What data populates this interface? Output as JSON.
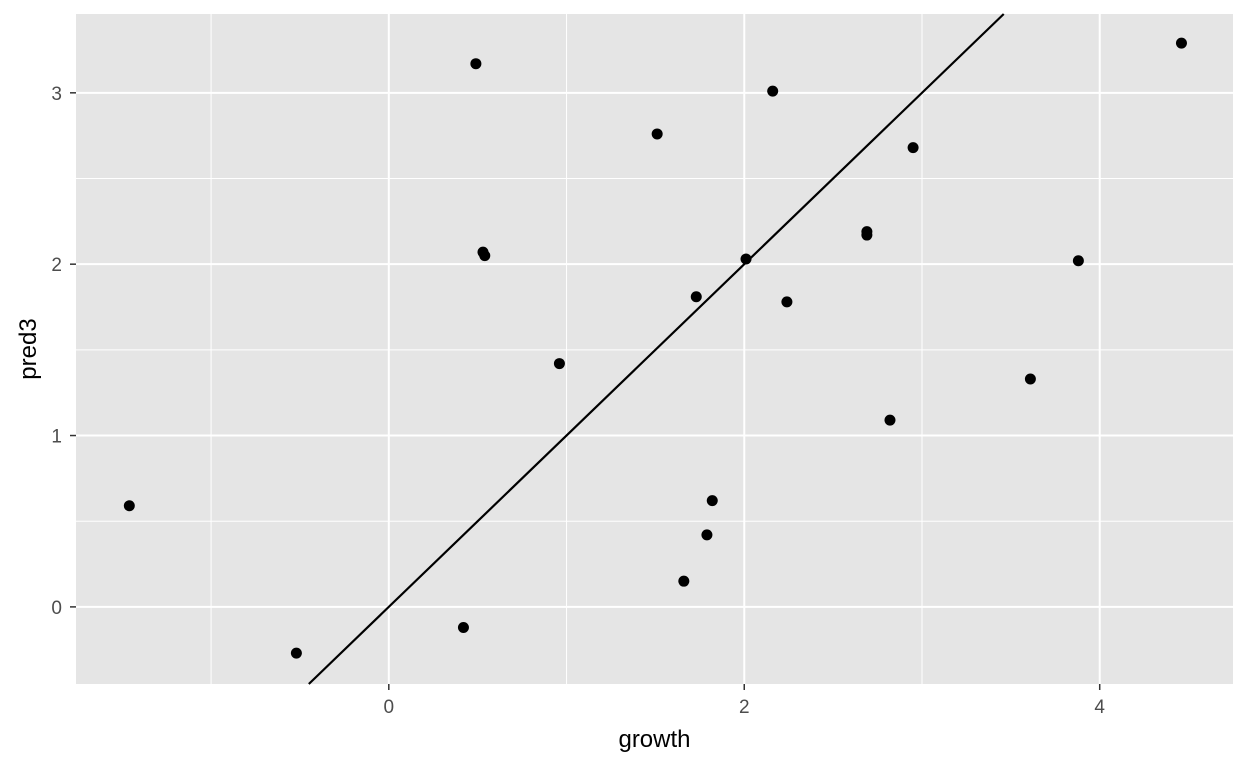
{
  "chart_data": {
    "type": "scatter",
    "xlabel": "growth",
    "ylabel": "pred3",
    "xlim": [
      -1.76,
      4.75
    ],
    "ylim": [
      -0.45,
      3.46
    ],
    "x_ticks": [
      0,
      2,
      4
    ],
    "y_ticks": [
      0,
      1,
      2,
      3
    ],
    "x_minor": [
      -1,
      1,
      3
    ],
    "y_minor": [
      0.5,
      1.5,
      2.5
    ],
    "grid": true,
    "legend": "none",
    "colors": {
      "panel": "#e5e5e5",
      "grid": "#ffffff",
      "point": "#000000",
      "line": "#000000",
      "tick_text": "#4d4d4d",
      "tick_mark": "#333333"
    },
    "reference_line": {
      "slope": 1,
      "intercept": 0
    },
    "points": [
      {
        "x": -1.46,
        "y": 0.59
      },
      {
        "x": -0.52,
        "y": -0.27
      },
      {
        "x": 0.42,
        "y": -0.12
      },
      {
        "x": 0.49,
        "y": 3.17
      },
      {
        "x": 0.53,
        "y": 2.07
      },
      {
        "x": 0.54,
        "y": 2.05
      },
      {
        "x": 0.96,
        "y": 1.42
      },
      {
        "x": 1.51,
        "y": 2.76
      },
      {
        "x": 1.66,
        "y": 0.15
      },
      {
        "x": 1.73,
        "y": 1.81
      },
      {
        "x": 1.79,
        "y": 0.42
      },
      {
        "x": 1.82,
        "y": 0.62
      },
      {
        "x": 2.01,
        "y": 2.03
      },
      {
        "x": 2.16,
        "y": 3.01
      },
      {
        "x": 2.24,
        "y": 1.78
      },
      {
        "x": 2.69,
        "y": 2.17
      },
      {
        "x": 2.69,
        "y": 2.19
      },
      {
        "x": 2.82,
        "y": 1.09
      },
      {
        "x": 2.95,
        "y": 2.68
      },
      {
        "x": 3.61,
        "y": 1.33
      },
      {
        "x": 3.88,
        "y": 2.02
      },
      {
        "x": 4.46,
        "y": 3.29
      }
    ]
  }
}
